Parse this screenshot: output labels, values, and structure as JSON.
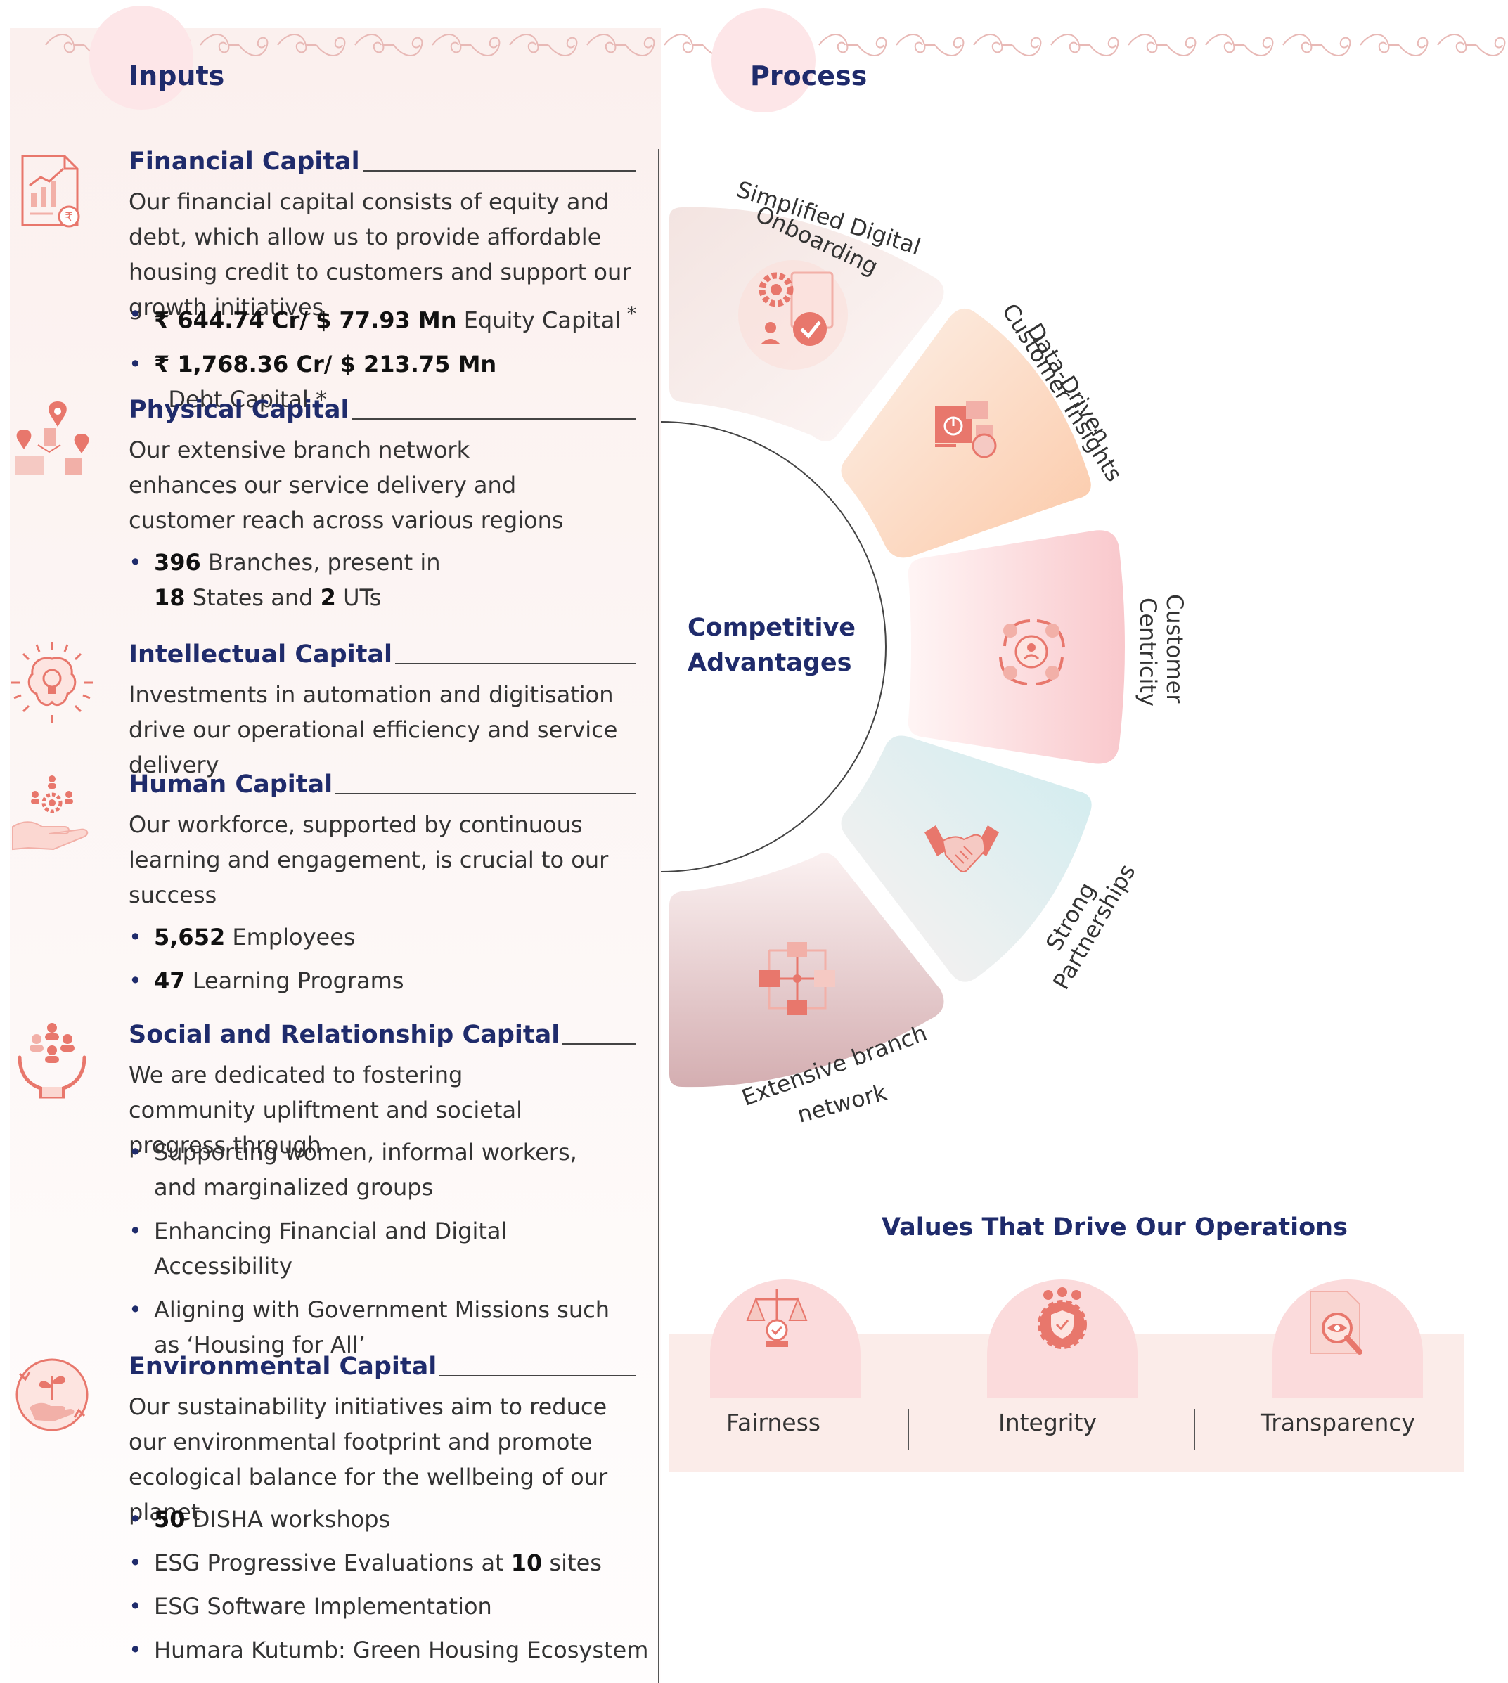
{
  "inputs": {
    "title": "Inputs"
  },
  "process": {
    "title": "Process"
  },
  "capitals": [
    {
      "title": "Financial Capital",
      "icon": "financial-report-icon",
      "description": "Our financial capital consists of equity and debt, which allow us to provide affordable housing credit to customers and support our growth initiatives",
      "bullets": [
        {
          "value": "₹ 644.74 Cr/ $ 77.93 Mn",
          "label": " Equity Capital",
          "mark": " *"
        },
        {
          "value": "₹ 1,768.36 Cr/ $ 213.75 Mn",
          "label": "  Debt Capital *"
        }
      ]
    },
    {
      "title": "Physical Capital",
      "icon": "branch-network-icon",
      "description": "Our extensive branch network enhances our service delivery and customer reach across various regions",
      "bullet_parts": [
        "396",
        " Branches, present in",
        "18",
        " States and ",
        "2",
        " UTs"
      ]
    },
    {
      "title": "Intellectual Capital",
      "icon": "lightbulb-brain-icon",
      "description": "Investments in automation and digitisation drive our operational efficiency and service delivery"
    },
    {
      "title": "Human Capital",
      "icon": "hand-people-gear-icon",
      "description": "Our workforce, supported by continuous learning and engagement, is crucial to our success",
      "bullets": [
        {
          "value": "5,652",
          "label": " Employees"
        },
        {
          "value": "47",
          "label": " Learning Programs"
        }
      ]
    },
    {
      "title": "Social and Relationship Capital",
      "icon": "community-hands-icon",
      "description": "We are dedicated to fostering community upliftment and societal progress through",
      "bullets": [
        {
          "label": "Supporting women, informal workers, and marginalized groups"
        },
        {
          "label": "Enhancing Financial and Digital Accessibility"
        },
        {
          "label": "Aligning with Government Missions such as ‘Housing for All’"
        }
      ]
    },
    {
      "title": "Environmental Capital",
      "icon": "plant-hand-icon",
      "description": "Our sustainability initiatives aim to reduce our environmental footprint and promote ecological balance for the wellbeing of our planet",
      "bullets": [
        {
          "value": "50",
          "label": " DISHA workshops"
        },
        {
          "pre": "ESG Progressive Evaluations at ",
          "value": "10",
          "label": " sites"
        },
        {
          "label": "ESG Software Implementation"
        },
        {
          "label": "Humara Kutumb: Green Housing Ecosystem"
        }
      ]
    }
  ],
  "competitive_advantages": {
    "center_line1": "Competitive",
    "center_line2": "Advantages",
    "segments": [
      {
        "line1": "Simplified Digital",
        "line2": "Onboarding",
        "icon": "digital-onboarding-icon",
        "color": "#f4e3e0"
      },
      {
        "line1": "Data-Driven",
        "line2": "Customer Insights",
        "icon": "data-dashboard-icon",
        "color": "#fcd5bf"
      },
      {
        "line1": "Customer",
        "line2": "Centricity",
        "icon": "customer-cycle-icon",
        "color": "#fcd8db"
      },
      {
        "line1": "Strong",
        "line2": "Partnerships",
        "icon": "handshake-icon",
        "color": "#d5eef0"
      },
      {
        "line1": "Extensive branch",
        "line2": "network",
        "icon": "branch-network-grid-icon",
        "color": "#dcb7bb"
      }
    ]
  },
  "values": {
    "title": "Values That Drive Our Operations",
    "items": [
      {
        "label": "Fairness",
        "icon": "balance-scale-icon"
      },
      {
        "label": "Integrity",
        "icon": "shield-people-icon"
      },
      {
        "label": "Transparency",
        "icon": "document-eye-icon"
      }
    ]
  },
  "colors": {
    "navy": "#1f2b6b",
    "coral": "#e8776c",
    "panel": "#fbf0ee",
    "bubble": "#fde6e8"
  }
}
